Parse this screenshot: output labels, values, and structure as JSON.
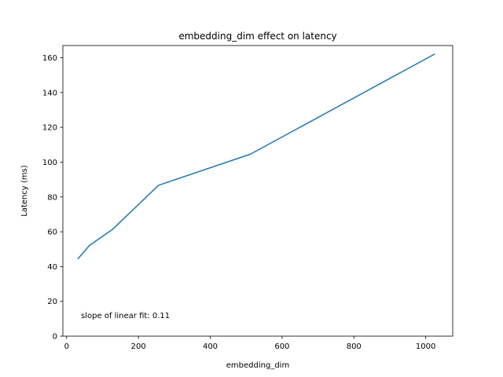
{
  "chart_data": {
    "type": "line",
    "title": "embedding_dim effect on latency",
    "xlabel": "embedding_dim",
    "ylabel": "Latency (ms)",
    "xlim": [
      -10.4,
      1075.2
    ],
    "ylim": [
      0,
      167
    ],
    "xticks": [
      0,
      200,
      400,
      600,
      800,
      1000
    ],
    "yticks": [
      0,
      20,
      40,
      60,
      80,
      100,
      120,
      140,
      160
    ],
    "grid": false,
    "series": [
      {
        "color": "#1f77b4",
        "x": [
          32,
          64,
          128,
          256,
          512,
          1024
        ],
        "y": [
          44.6,
          52.2,
          61.4,
          86.7,
          104.6,
          162.0
        ]
      }
    ],
    "annotation": "slope of linear fit: 0.11"
  }
}
